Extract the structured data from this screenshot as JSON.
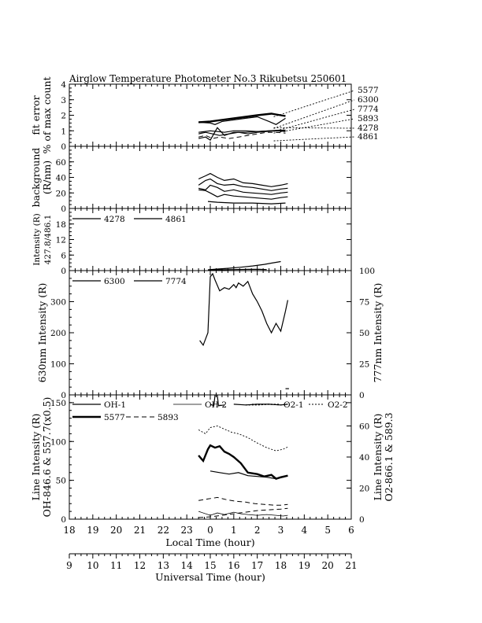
{
  "title": "Airglow Temperature Photometer No.3  Rikubetsu    250601",
  "x_axes": {
    "local": {
      "label": "Local Time (hour)",
      "tick_labels": [
        "18",
        "19",
        "20",
        "21",
        "22",
        "23",
        "0",
        "1",
        "2",
        "3",
        "4",
        "5",
        "6"
      ],
      "range": [
        18,
        30
      ]
    },
    "universal": {
      "label": "Universal Time (hour)",
      "tick_labels": [
        "9",
        "10",
        "11",
        "12",
        "13",
        "14",
        "15",
        "16",
        "17",
        "18",
        "19",
        "20",
        "21"
      ],
      "range": [
        9,
        21
      ]
    }
  },
  "chart_data": [
    {
      "id": "fit_error",
      "type": "line",
      "ylabel": [
        "fit error",
        "% of max count"
      ],
      "ylim": [
        0,
        4
      ],
      "yticks": [
        "0",
        "1",
        "2",
        "3",
        "4"
      ],
      "pointer_labels": [
        "5577",
        "6300",
        "7774",
        "5893",
        "4278",
        "4861"
      ],
      "series": [
        {
          "name": "5577",
          "x": [
            23.5,
            24.0,
            24.5,
            25.0,
            25.5,
            26.0,
            26.3,
            26.6,
            26.8,
            27.2
          ],
          "y": [
            1.55,
            1.6,
            1.7,
            1.8,
            1.9,
            2.0,
            2.05,
            2.1,
            2.05,
            1.95
          ]
        },
        {
          "name": "6300",
          "x": [
            23.5,
            23.8,
            24.0,
            24.3,
            24.6,
            25.0,
            25.5,
            26.0,
            26.5,
            26.8,
            27.2
          ],
          "y": [
            0.5,
            0.6,
            0.4,
            1.2,
            0.7,
            0.9,
            0.9,
            0.95,
            1.0,
            1.0,
            1.05
          ]
        },
        {
          "name": "7774",
          "x": [
            23.5,
            23.8,
            24.1,
            24.4,
            24.8,
            25.2,
            25.6,
            26.0,
            26.4,
            26.8,
            27.2
          ],
          "y": [
            0.8,
            0.9,
            0.8,
            0.7,
            0.8,
            0.9,
            0.8,
            0.9,
            0.95,
            1.0,
            0.95
          ]
        },
        {
          "name": "5893",
          "x": [
            23.5,
            23.8,
            24.1,
            24.4,
            24.8,
            25.2,
            25.6,
            26.0,
            26.4,
            26.8,
            27.2
          ],
          "y": [
            0.6,
            0.7,
            0.5,
            0.6,
            0.5,
            0.6,
            0.7,
            0.8,
            0.9,
            0.9,
            0.85
          ]
        },
        {
          "name": "4278",
          "x": [
            23.5,
            24.0,
            24.2,
            24.5,
            25.0,
            25.5,
            26.0,
            26.5,
            26.8,
            27.2
          ],
          "y": [
            1.55,
            1.5,
            1.4,
            1.6,
            1.7,
            1.8,
            1.9,
            1.6,
            1.4,
            1.8
          ]
        },
        {
          "name": "4861",
          "x": [
            23.5,
            24.0,
            24.3,
            24.6,
            25.0,
            25.5,
            26.0,
            26.5,
            27.0,
            27.2
          ],
          "y": [
            0.9,
            1.0,
            0.95,
            0.9,
            1.0,
            1.0,
            0.95,
            1.0,
            1.05,
            1.0
          ]
        }
      ]
    },
    {
      "id": "background",
      "type": "line",
      "ylabel": [
        "background",
        "(R/nm)"
      ],
      "ylim": [
        0,
        80
      ],
      "yticks": [
        "0",
        "20",
        "40",
        "60"
      ],
      "series": [
        {
          "name": "bg1",
          "x": [
            23.5,
            23.8,
            24.0,
            24.3,
            24.6,
            25.0,
            25.4,
            25.8,
            26.2,
            26.6,
            27.0,
            27.3
          ],
          "y": [
            38,
            42,
            45,
            40,
            36,
            38,
            33,
            32,
            30,
            28,
            30,
            32
          ]
        },
        {
          "name": "bg2",
          "x": [
            23.5,
            23.8,
            24.0,
            24.3,
            24.6,
            25.0,
            25.4,
            25.8,
            26.2,
            26.6,
            27.0,
            27.3
          ],
          "y": [
            30,
            36,
            38,
            32,
            30,
            31,
            28,
            27,
            25,
            23,
            25,
            26
          ]
        },
        {
          "name": "bg3",
          "x": [
            23.5,
            23.8,
            24.0,
            24.3,
            24.6,
            25.0,
            25.4,
            25.8,
            26.2,
            26.6,
            27.0,
            27.3
          ],
          "y": [
            26,
            24,
            30,
            27,
            22,
            24,
            21,
            20,
            19,
            18,
            20,
            21
          ]
        },
        {
          "name": "bg4",
          "x": [
            23.5,
            23.8,
            24.0,
            24.3,
            24.6,
            25.0,
            25.4,
            25.8,
            26.2,
            26.6,
            27.0,
            27.3
          ],
          "y": [
            24,
            23,
            20,
            15,
            18,
            16,
            15,
            14,
            13,
            12,
            14,
            15
          ]
        },
        {
          "name": "bg5",
          "x": [
            23.9,
            24.3,
            25.0,
            25.8,
            26.6,
            27.2
          ],
          "y": [
            9,
            8,
            7,
            7,
            6,
            7
          ]
        }
      ]
    },
    {
      "id": "intensity_427_486",
      "type": "line",
      "ylabel": [
        "Intensity (R)",
        "427.8/486.1"
      ],
      "ylim": [
        0,
        24
      ],
      "yticks": [
        "0",
        "6",
        "12",
        "18"
      ],
      "legend": [
        "4278",
        "4861"
      ],
      "series": [
        {
          "name": "4278",
          "x": [
            23.9,
            24.3,
            24.8,
            25.3,
            25.8,
            26.3,
            26.6,
            27.0
          ],
          "y": [
            0.3,
            0.6,
            0.9,
            1.3,
            1.8,
            2.4,
            2.9,
            3.5
          ]
        },
        {
          "name": "4861",
          "x": [
            23.9,
            24.4,
            25.0,
            25.6,
            26.1,
            26.4
          ],
          "y": [
            0.2,
            0.3,
            0.4,
            0.5,
            0.5,
            0.4
          ]
        }
      ]
    },
    {
      "id": "intensity_630_777",
      "type": "line",
      "ylabel": "630nm Intensity (R)",
      "ylabel_right": "777nm Intensity (R)",
      "ylim": [
        0,
        400
      ],
      "ylim_right": [
        0,
        100
      ],
      "yticks": [
        "0",
        "100",
        "200",
        "300"
      ],
      "yticks_right": [
        "0",
        "25",
        "50",
        "75",
        "100"
      ],
      "legend": [
        "6300",
        "7774"
      ],
      "series": [
        {
          "name": "6300",
          "x": [
            23.55,
            23.7,
            23.9,
            24.0,
            24.1,
            24.2,
            24.4,
            24.6,
            24.8,
            25.0,
            25.1,
            25.2,
            25.4,
            25.6,
            25.8,
            26.0,
            26.2,
            26.4,
            26.6,
            26.8,
            27.0,
            27.2,
            27.3
          ],
          "y": [
            175,
            160,
            200,
            380,
            390,
            370,
            335,
            345,
            340,
            355,
            345,
            360,
            350,
            365,
            325,
            300,
            270,
            230,
            200,
            230,
            205,
            270,
            305
          ]
        },
        {
          "name": "7774",
          "x": [
            27.2,
            27.35
          ],
          "y": [
            5,
            5
          ]
        }
      ]
    },
    {
      "id": "line_intensity",
      "type": "line",
      "ylabel": [
        "Line Intensity (R)",
        "OH-846.6 & 557.7(x0.5)"
      ],
      "ylabel_right": [
        "Line Intensity (R)",
        "O2-866.1 & 589.3"
      ],
      "ylim": [
        0,
        160
      ],
      "ylim_right": [
        0,
        80
      ],
      "yticks": [
        "0",
        "50",
        "100",
        "150"
      ],
      "yticks_right": [
        "0",
        "20",
        "40",
        "60"
      ],
      "legend": [
        "OH-1",
        "OH-2",
        "O2-1",
        "O2-2",
        "5577",
        "5893"
      ],
      "spike": {
        "x": [
          24.0,
          24.15,
          24.25,
          24.35,
          24.6
        ],
        "y": [
          148,
          146,
          173,
          146,
          147
        ]
      },
      "series": [
        {
          "name": "OH-1",
          "x": [
            25.0,
            25.5,
            26.0,
            26.5,
            27.0,
            27.3
          ],
          "y": [
            148,
            147,
            148,
            148,
            147,
            148
          ]
        },
        {
          "name": "O2-1",
          "x": [
            25.5,
            26.0,
            26.5,
            27.0,
            27.3
          ],
          "y": [
            147,
            147,
            148,
            147,
            148
          ]
        },
        {
          "name": "OH-2",
          "x": [
            23.5,
            24.0,
            24.3,
            24.6,
            25.0,
            25.3,
            25.6,
            26.0,
            26.4,
            26.8,
            27.1,
            27.3
          ],
          "y": [
            10,
            5,
            8,
            6,
            9,
            7,
            6,
            5,
            6,
            5,
            4,
            5
          ]
        },
        {
          "name": "O2-2",
          "x": [
            23.5,
            23.8,
            24.0,
            24.3,
            24.6,
            24.9,
            25.2,
            25.6,
            26.0,
            26.4,
            26.8,
            27.1,
            27.3
          ],
          "y": [
            115,
            110,
            118,
            120,
            116,
            112,
            110,
            105,
            98,
            92,
            88,
            90,
            93
          ]
        },
        {
          "name": "5577",
          "x": [
            23.5,
            23.7,
            23.9,
            24.0,
            24.2,
            24.4,
            24.6,
            24.8,
            25.0,
            25.3,
            25.6,
            26.0,
            26.3,
            26.6,
            26.8,
            27.0,
            27.3
          ],
          "y": [
            82,
            75,
            90,
            95,
            92,
            94,
            87,
            84,
            80,
            72,
            60,
            58,
            55,
            57,
            52,
            54,
            56
          ]
        },
        {
          "name": "O2-1b",
          "x": [
            24.0,
            24.4,
            24.8,
            25.2,
            25.6,
            26.0,
            26.4,
            26.8,
            27.1,
            27.3
          ],
          "y": [
            62,
            60,
            58,
            60,
            56,
            55,
            54,
            52,
            54,
            56
          ]
        },
        {
          "name": "5893",
          "x": [
            23.5,
            23.9,
            24.3,
            24.7,
            25.1,
            25.5,
            25.9,
            26.3,
            26.7,
            27.0,
            27.3
          ],
          "y": [
            24,
            26,
            28,
            25,
            23,
            22,
            20,
            19,
            18,
            18,
            19
          ]
        },
        {
          "name": "5893b",
          "x": [
            23.5,
            24.0,
            24.5,
            25.0,
            25.5,
            26.0,
            26.5,
            27.0,
            27.3
          ],
          "y": [
            2,
            3,
            5,
            7,
            9,
            11,
            12,
            13,
            14
          ]
        }
      ]
    }
  ]
}
